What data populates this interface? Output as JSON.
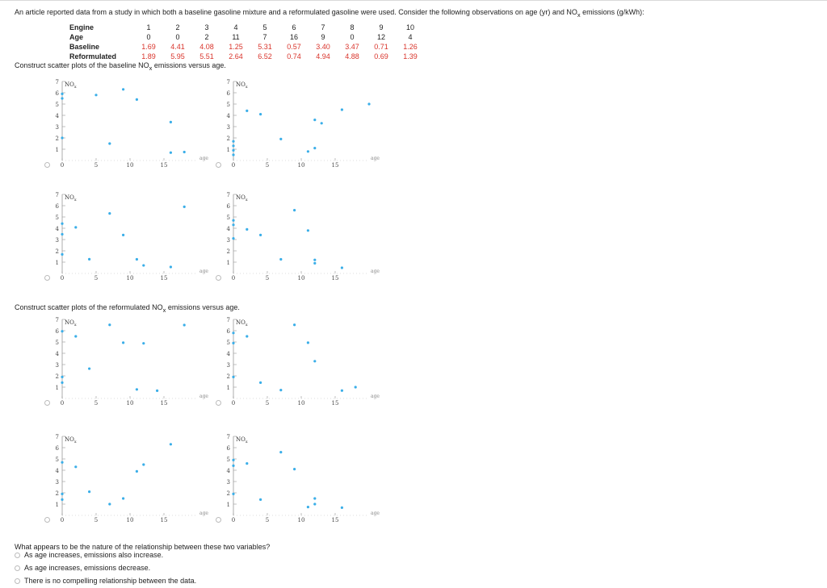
{
  "intro": {
    "pre": "An article reported data from a study in which both a baseline gasoline mixture and a reformulated gasoline were used. Consider the following observations on age (yr) and NO",
    "sub": "x",
    "post": " emissions (g/kWh):"
  },
  "table": {
    "rows": [
      {
        "label": "Engine",
        "values": [
          "1",
          "2",
          "3",
          "4",
          "5",
          "6",
          "7",
          "8",
          "9",
          "10"
        ]
      },
      {
        "label": "Age",
        "values": [
          "0",
          "0",
          "2",
          "11",
          "7",
          "16",
          "9",
          "0",
          "12",
          "4"
        ]
      },
      {
        "label": "Baseline",
        "values": [
          "1.69",
          "4.41",
          "4.08",
          "1.25",
          "5.31",
          "0.57",
          "3.40",
          "3.47",
          "0.71",
          "1.26"
        ]
      },
      {
        "label": "Reformulated",
        "values": [
          "1.89",
          "5.95",
          "5.51",
          "2.64",
          "6.52",
          "0.74",
          "4.94",
          "4.88",
          "0.69",
          "1.39"
        ]
      }
    ]
  },
  "heading_baseline": {
    "pre": "Construct scatter plots of the baseline NO",
    "sub": "x",
    "post": " emissions versus age."
  },
  "heading_reformulated": {
    "pre": "Construct scatter plots of the reformulated NO",
    "sub": "x",
    "post": " emissions versus age."
  },
  "plot_labels": {
    "y": "NO",
    "y_sub": "x",
    "x": "age"
  },
  "colors": {
    "point": "#3aaee8",
    "value_text": "#d9342b"
  },
  "chart_data": [
    {
      "type": "scatter",
      "ylabel": "NOx",
      "xlabel": "age",
      "xlim": [
        0,
        20
      ],
      "ylim": [
        0,
        7
      ],
      "xticks": [
        0,
        5,
        10,
        15
      ],
      "yticks": [
        1,
        2,
        3,
        4,
        5,
        6,
        7
      ],
      "points": [
        [
          0,
          5.9
        ],
        [
          0,
          5.5
        ],
        [
          0,
          2
        ],
        [
          5,
          5.8
        ],
        [
          7,
          1.5
        ],
        [
          9,
          6.3
        ],
        [
          11,
          5.4
        ],
        [
          16,
          3.4
        ],
        [
          16,
          0.7
        ],
        [
          18,
          0.75
        ]
      ]
    },
    {
      "type": "scatter",
      "ylabel": "NOx",
      "xlabel": "age",
      "xlim": [
        0,
        20
      ],
      "ylim": [
        0,
        7
      ],
      "xticks": [
        0,
        5,
        10,
        15
      ],
      "yticks": [
        1,
        2,
        3,
        4,
        5,
        6,
        7
      ],
      "points": [
        [
          0,
          1.7
        ],
        [
          0,
          0.9
        ],
        [
          0,
          0.5
        ],
        [
          0,
          1.3
        ],
        [
          2,
          4.4
        ],
        [
          4,
          4.1
        ],
        [
          7,
          1.9
        ],
        [
          11,
          0.8
        ],
        [
          12,
          1.1
        ],
        [
          12,
          3.6
        ],
        [
          13,
          3.3
        ],
        [
          16,
          4.5
        ],
        [
          20,
          5.0
        ]
      ]
    },
    {
      "type": "scatter",
      "ylabel": "NOx",
      "xlabel": "age",
      "xlim": [
        0,
        20
      ],
      "ylim": [
        0,
        7
      ],
      "xticks": [
        0,
        5,
        10,
        15
      ],
      "yticks": [
        1,
        2,
        3,
        4,
        5,
        6,
        7
      ],
      "points": [
        [
          0,
          1.69
        ],
        [
          0,
          4.41
        ],
        [
          0,
          3.47
        ],
        [
          2,
          4.08
        ],
        [
          4,
          1.26
        ],
        [
          7,
          5.31
        ],
        [
          9,
          3.4
        ],
        [
          11,
          1.25
        ],
        [
          12,
          0.71
        ],
        [
          16,
          0.57
        ],
        [
          18,
          5.9
        ]
      ]
    },
    {
      "type": "scatter",
      "ylabel": "NOx",
      "xlabel": "age",
      "xlim": [
        0,
        20
      ],
      "ylim": [
        0,
        7
      ],
      "xticks": [
        0,
        5,
        10,
        15
      ],
      "yticks": [
        1,
        2,
        3,
        4,
        5,
        6,
        7
      ],
      "points": [
        [
          0,
          4.3
        ],
        [
          0,
          4.7
        ],
        [
          0,
          3.1
        ],
        [
          2,
          3.9
        ],
        [
          4,
          3.4
        ],
        [
          7,
          1.25
        ],
        [
          9,
          5.6
        ],
        [
          11,
          3.8
        ],
        [
          12,
          0.9
        ],
        [
          12,
          1.2
        ],
        [
          16,
          0.5
        ]
      ]
    },
    {
      "type": "scatter",
      "ylabel": "NOx",
      "xlabel": "age",
      "xlim": [
        0,
        20
      ],
      "ylim": [
        0,
        7
      ],
      "xticks": [
        0,
        5,
        10,
        15
      ],
      "yticks": [
        1,
        2,
        3,
        4,
        5,
        6,
        7
      ],
      "points": [
        [
          0,
          1.9
        ],
        [
          0,
          5.95
        ],
        [
          0,
          1.4
        ],
        [
          2,
          5.5
        ],
        [
          4,
          2.64
        ],
        [
          7,
          6.52
        ],
        [
          9,
          4.94
        ],
        [
          11,
          0.8
        ],
        [
          12,
          4.88
        ],
        [
          14,
          0.69
        ],
        [
          18,
          6.5
        ]
      ]
    },
    {
      "type": "scatter",
      "ylabel": "NOx",
      "xlabel": "age",
      "xlim": [
        0,
        20
      ],
      "ylim": [
        0,
        7
      ],
      "xticks": [
        0,
        5,
        10,
        15
      ],
      "yticks": [
        1,
        2,
        3,
        4,
        5,
        6,
        7
      ],
      "points": [
        [
          0,
          5.8
        ],
        [
          0,
          4.9
        ],
        [
          0,
          1.9
        ],
        [
          2,
          5.5
        ],
        [
          4,
          1.4
        ],
        [
          7,
          0.74
        ],
        [
          9,
          6.52
        ],
        [
          11,
          4.94
        ],
        [
          12,
          3.3
        ],
        [
          16,
          0.7
        ],
        [
          18,
          1.0
        ]
      ]
    },
    {
      "type": "scatter",
      "ylabel": "NOx",
      "xlabel": "age",
      "xlim": [
        0,
        20
      ],
      "ylim": [
        0,
        7
      ],
      "xticks": [
        0,
        5,
        10,
        15
      ],
      "yticks": [
        1,
        2,
        3,
        4,
        5,
        6,
        7
      ],
      "points": [
        [
          0,
          1.4
        ],
        [
          0,
          1.9
        ],
        [
          0,
          4.7
        ],
        [
          2,
          4.3
        ],
        [
          4,
          2.1
        ],
        [
          7,
          1.0
        ],
        [
          9,
          1.5
        ],
        [
          11,
          3.9
        ],
        [
          12,
          4.5
        ],
        [
          16,
          6.3
        ]
      ]
    },
    {
      "type": "scatter",
      "ylabel": "NOx",
      "xlabel": "age",
      "xlim": [
        0,
        20
      ],
      "ylim": [
        0,
        7
      ],
      "xticks": [
        0,
        5,
        10,
        15
      ],
      "yticks": [
        1,
        2,
        3,
        4,
        5,
        6,
        7
      ],
      "points": [
        [
          0,
          4.9
        ],
        [
          0,
          4.4
        ],
        [
          0,
          1.9
        ],
        [
          2,
          4.6
        ],
        [
          4,
          1.4
        ],
        [
          7,
          5.6
        ],
        [
          9,
          4.1
        ],
        [
          11,
          0.74
        ],
        [
          12,
          1.5
        ],
        [
          12,
          1.0
        ],
        [
          16,
          0.69
        ]
      ]
    }
  ],
  "question": "What appears to be the nature of the relationship between these two variables?",
  "options": [
    "As age increases, emissions also increase.",
    "As age increases, emissions decrease.",
    "There is no compelling relationship between the data."
  ]
}
